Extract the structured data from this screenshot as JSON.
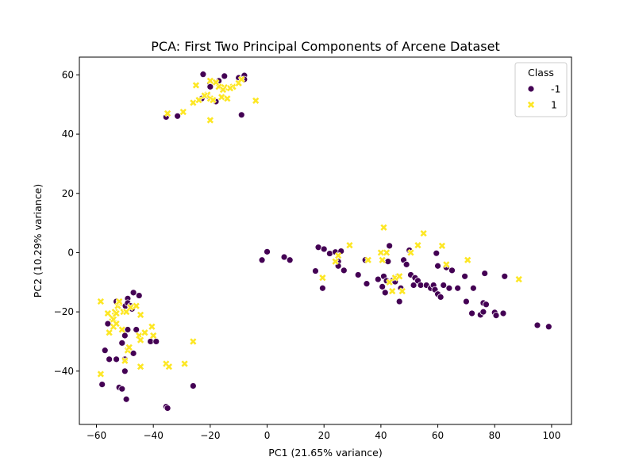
{
  "chart_data": {
    "type": "scatter",
    "title": "PCA: First Two Principal Components of Arcene Dataset",
    "xlabel": "PC1 (21.65% variance)",
    "ylabel": "PC2 (10.29% variance)",
    "xlim": [
      -66,
      107
    ],
    "ylim": [
      -58,
      66
    ],
    "xticks": [
      -60,
      -40,
      -20,
      0,
      20,
      40,
      60,
      80,
      100
    ],
    "yticks": [
      -40,
      -20,
      0,
      20,
      40,
      60
    ],
    "grid": false,
    "legend": {
      "title": "Class",
      "placement": "top-right"
    },
    "series": [
      {
        "name": "-1",
        "marker": "circle",
        "color": "#440154",
        "points": [
          [
            -22.5,
            60.2
          ],
          [
            -20,
            57.2
          ],
          [
            -17,
            58
          ],
          [
            -15,
            59.6
          ],
          [
            -10,
            59
          ],
          [
            -8,
            59.8
          ],
          [
            -8,
            58.5
          ],
          [
            -20,
            56
          ],
          [
            -21,
            53
          ],
          [
            -23,
            52
          ],
          [
            -20,
            52
          ],
          [
            -18,
            51
          ],
          [
            -35.5,
            45.8
          ],
          [
            -31.5,
            46.1
          ],
          [
            -9,
            46.5
          ],
          [
            -1.8,
            -2.5
          ],
          [
            0,
            0.3
          ],
          [
            6,
            -1.5
          ],
          [
            8,
            -2.5
          ],
          [
            17,
            -6.2
          ],
          [
            18,
            1.8
          ],
          [
            19.5,
            -12
          ],
          [
            20,
            1.2
          ],
          [
            22,
            -0.3
          ],
          [
            24,
            0.2
          ],
          [
            25,
            -3
          ],
          [
            25,
            -4.5
          ],
          [
            26,
            0.5
          ],
          [
            27,
            -6
          ],
          [
            32,
            -7.5
          ],
          [
            34.5,
            -2.5
          ],
          [
            35,
            -10.5
          ],
          [
            39,
            -9
          ],
          [
            40.5,
            -11.5
          ],
          [
            41,
            -8
          ],
          [
            41.5,
            -13.5
          ],
          [
            42,
            -9.5
          ],
          [
            42.5,
            -3
          ],
          [
            43,
            2.3
          ],
          [
            44,
            -9.5
          ],
          [
            45,
            -9.8
          ],
          [
            46,
            -8
          ],
          [
            46.5,
            -16.5
          ],
          [
            47,
            -12
          ],
          [
            48,
            -2.5
          ],
          [
            49,
            -4
          ],
          [
            50,
            0.8
          ],
          [
            50.5,
            -7.5
          ],
          [
            51.5,
            -11
          ],
          [
            52,
            -8.5
          ],
          [
            53,
            -9.5
          ],
          [
            54,
            -11
          ],
          [
            56,
            -11
          ],
          [
            57.5,
            -12
          ],
          [
            58.5,
            -11
          ],
          [
            59,
            -12.5
          ],
          [
            59.5,
            -0.2
          ],
          [
            60,
            -4.5
          ],
          [
            60,
            -14
          ],
          [
            61,
            -15
          ],
          [
            62,
            -11
          ],
          [
            63,
            -5
          ],
          [
            64,
            -12
          ],
          [
            65,
            -6
          ],
          [
            67,
            -12
          ],
          [
            69.5,
            -8
          ],
          [
            70,
            -16.5
          ],
          [
            72,
            -20.5
          ],
          [
            72.5,
            -12
          ],
          [
            75,
            -21
          ],
          [
            76,
            -17
          ],
          [
            76.5,
            -7
          ],
          [
            77,
            -17.5
          ],
          [
            76,
            -20
          ],
          [
            80,
            -20.2
          ],
          [
            80.5,
            -21.2
          ],
          [
            83,
            -20.5
          ],
          [
            83.5,
            -8
          ],
          [
            95,
            -24.5
          ],
          [
            99,
            -25
          ],
          [
            -58,
            -44.5
          ],
          [
            -57,
            -33
          ],
          [
            -56,
            -24
          ],
          [
            -55.5,
            -36
          ],
          [
            -53,
            -36
          ],
          [
            -53,
            -16.5
          ],
          [
            -52,
            -45.5
          ],
          [
            -51,
            -46
          ],
          [
            -51,
            -30.5
          ],
          [
            -50,
            -28
          ],
          [
            -50,
            -36
          ],
          [
            -50,
            -40
          ],
          [
            -49.8,
            -18
          ],
          [
            -49.5,
            -49.5
          ],
          [
            -49,
            -15.5
          ],
          [
            -49,
            -17
          ],
          [
            -49,
            -26
          ],
          [
            -48,
            -18
          ],
          [
            -47.5,
            -19
          ],
          [
            -47,
            -34
          ],
          [
            -47,
            -13.5
          ],
          [
            -46,
            -26
          ],
          [
            -45,
            -14.5
          ],
          [
            -41,
            -30
          ],
          [
            -39,
            -30
          ],
          [
            -35.5,
            -52
          ],
          [
            -35,
            -52.5
          ],
          [
            -26,
            -45
          ]
        ]
      },
      {
        "name": "1",
        "marker": "x",
        "color": "#fde725",
        "points": [
          [
            -25,
            56.5
          ],
          [
            -20,
            58
          ],
          [
            -17,
            56
          ],
          [
            -12,
            56
          ],
          [
            -18,
            57.5
          ],
          [
            -10,
            57.2
          ],
          [
            -21,
            53.3
          ],
          [
            -22,
            53
          ],
          [
            -20,
            52
          ],
          [
            -19,
            51.5
          ],
          [
            -26,
            50.6
          ],
          [
            -24,
            51.5
          ],
          [
            -16,
            52.5
          ],
          [
            -14,
            52
          ],
          [
            -13,
            55.5
          ],
          [
            -9,
            58.5
          ],
          [
            -15,
            55.8
          ],
          [
            -15.5,
            55
          ],
          [
            -4,
            51.3
          ],
          [
            -29.5,
            47.5
          ],
          [
            -35,
            47
          ],
          [
            -20,
            44.7
          ],
          [
            19.5,
            -8.5
          ],
          [
            24,
            -3
          ],
          [
            25,
            -1
          ],
          [
            29,
            2.5
          ],
          [
            35.5,
            -2.5
          ],
          [
            40,
            0
          ],
          [
            40.5,
            -2.5
          ],
          [
            41,
            8.5
          ],
          [
            42,
            0
          ],
          [
            43,
            -10
          ],
          [
            44,
            -13
          ],
          [
            45,
            -8.5
          ],
          [
            46.5,
            -8
          ],
          [
            47.5,
            -13
          ],
          [
            50.5,
            0
          ],
          [
            53,
            2.5
          ],
          [
            55,
            6.5
          ],
          [
            61.5,
            2.3
          ],
          [
            63,
            -4
          ],
          [
            70.5,
            -2.5
          ],
          [
            88.5,
            -9
          ],
          [
            -58.5,
            -16.5
          ],
          [
            -58.5,
            -41
          ],
          [
            -56,
            -20.5
          ],
          [
            -55.5,
            -27
          ],
          [
            -54.5,
            -22
          ],
          [
            -54,
            -25
          ],
          [
            -54,
            -22.5
          ],
          [
            -53.5,
            -20
          ],
          [
            -53,
            -24
          ],
          [
            -53,
            -20.5
          ],
          [
            -52.5,
            -18
          ],
          [
            -52,
            -17
          ],
          [
            -52,
            -16.5
          ],
          [
            -51,
            -26
          ],
          [
            -50.5,
            -20
          ],
          [
            -50,
            -36.5
          ],
          [
            -49.5,
            -20
          ],
          [
            -49,
            -33
          ],
          [
            -48.5,
            -32
          ],
          [
            -48,
            -18.5
          ],
          [
            -46,
            -18
          ],
          [
            -45,
            -28
          ],
          [
            -44.5,
            -21
          ],
          [
            -44.5,
            -29.5
          ],
          [
            -44.5,
            -38.5
          ],
          [
            -43,
            -27
          ],
          [
            -40.5,
            -25
          ],
          [
            -40,
            -28
          ],
          [
            -35.5,
            -37.5
          ],
          [
            -34.5,
            -38.5
          ],
          [
            -29,
            -37.5
          ],
          [
            -26,
            -30
          ]
        ]
      }
    ]
  }
}
